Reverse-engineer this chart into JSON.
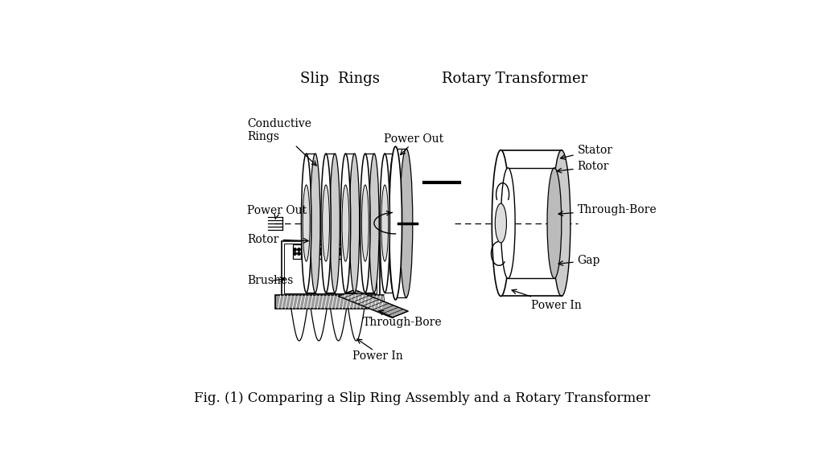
{
  "title": "Fig. (1) Comparing a Slip Ring Assembly and a Rotary Transformer",
  "slip_rings_title": "Slip  Rings",
  "rotary_title": "Rotary Transformer",
  "bg_color": "#ffffff",
  "line_color": "#000000"
}
